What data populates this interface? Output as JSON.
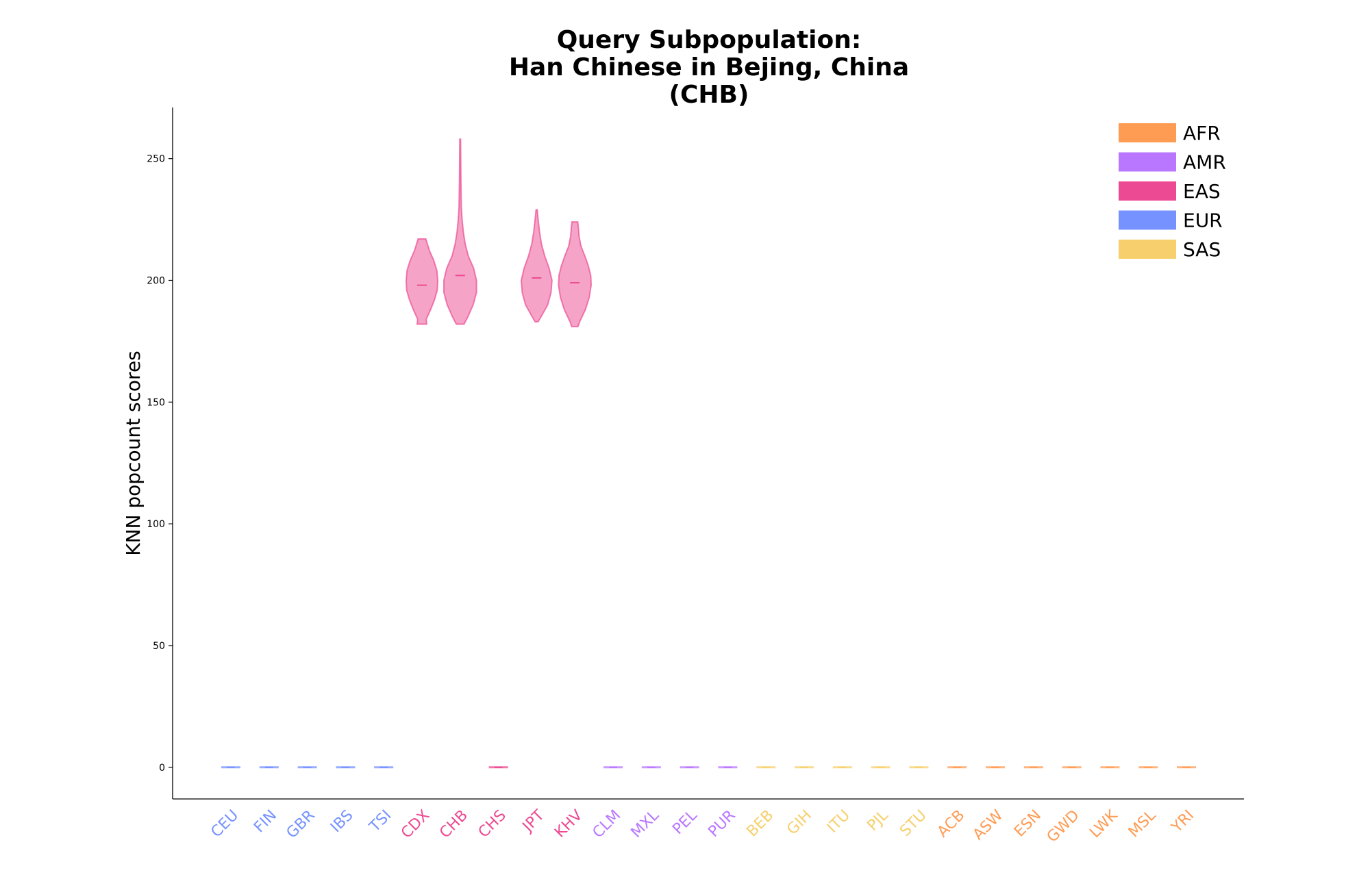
{
  "chart_data": {
    "type": "violin",
    "title": [
      "Query Subpopulation:",
      "Han Chinese in Bejing, China",
      "(CHB)"
    ],
    "xlabel": "",
    "ylabel": "KNN popcount scores",
    "ylim": [
      -13,
      271
    ],
    "yticks": [
      0,
      50,
      100,
      150,
      200,
      250
    ],
    "grid": false,
    "legend_position": "top-right",
    "colors": {
      "AFR": "#ff9c54",
      "AMR": "#b977ff",
      "EAS": "#ec4a92",
      "EUR": "#7592ff",
      "SAS": "#f7cf6c"
    },
    "legend": [
      "AFR",
      "AMR",
      "EAS",
      "EUR",
      "SAS"
    ],
    "categories": [
      {
        "label": "CEU",
        "group": "EUR",
        "median": 0,
        "min": 0,
        "max": 0
      },
      {
        "label": "FIN",
        "group": "EUR",
        "median": 0,
        "min": 0,
        "max": 0
      },
      {
        "label": "GBR",
        "group": "EUR",
        "median": 0,
        "min": 0,
        "max": 0
      },
      {
        "label": "IBS",
        "group": "EUR",
        "median": 0,
        "min": 0,
        "max": 0
      },
      {
        "label": "TSI",
        "group": "EUR",
        "median": 0,
        "min": 0,
        "max": 0
      },
      {
        "label": "CDX",
        "group": "EAS",
        "median": 198,
        "min": 182,
        "max": 217
      },
      {
        "label": "CHB",
        "group": "EAS",
        "median": 202,
        "min": 182,
        "max": 258
      },
      {
        "label": "CHS",
        "group": "EAS",
        "median": 0,
        "min": 0,
        "max": 0
      },
      {
        "label": "JPT",
        "group": "EAS",
        "median": 201,
        "min": 183,
        "max": 229
      },
      {
        "label": "KHV",
        "group": "EAS",
        "median": 199,
        "min": 181,
        "max": 224
      },
      {
        "label": "CLM",
        "group": "AMR",
        "median": 0,
        "min": 0,
        "max": 0
      },
      {
        "label": "MXL",
        "group": "AMR",
        "median": 0,
        "min": 0,
        "max": 0
      },
      {
        "label": "PEL",
        "group": "AMR",
        "median": 0,
        "min": 0,
        "max": 0
      },
      {
        "label": "PUR",
        "group": "AMR",
        "median": 0,
        "min": 0,
        "max": 0
      },
      {
        "label": "BEB",
        "group": "SAS",
        "median": 0,
        "min": 0,
        "max": 0
      },
      {
        "label": "GIH",
        "group": "SAS",
        "median": 0,
        "min": 0,
        "max": 0
      },
      {
        "label": "ITU",
        "group": "SAS",
        "median": 0,
        "min": 0,
        "max": 0
      },
      {
        "label": "PJL",
        "group": "SAS",
        "median": 0,
        "min": 0,
        "max": 0
      },
      {
        "label": "STU",
        "group": "SAS",
        "median": 0,
        "min": 0,
        "max": 0
      },
      {
        "label": "ACB",
        "group": "AFR",
        "median": 0,
        "min": 0,
        "max": 0
      },
      {
        "label": "ASW",
        "group": "AFR",
        "median": 0,
        "min": 0,
        "max": 0
      },
      {
        "label": "ESN",
        "group": "AFR",
        "median": 0,
        "min": 0,
        "max": 0
      },
      {
        "label": "GWD",
        "group": "AFR",
        "median": 0,
        "min": 0,
        "max": 0
      },
      {
        "label": "LWK",
        "group": "AFR",
        "median": 0,
        "min": 0,
        "max": 0
      },
      {
        "label": "MSL",
        "group": "AFR",
        "median": 0,
        "min": 0,
        "max": 0
      },
      {
        "label": "YRI",
        "group": "AFR",
        "median": 0,
        "min": 0,
        "max": 0
      }
    ],
    "density": {
      "CDX": [
        [
          182,
          0.25
        ],
        [
          184,
          0.22
        ],
        [
          188,
          0.45
        ],
        [
          192,
          0.65
        ],
        [
          196,
          0.8
        ],
        [
          200,
          0.82
        ],
        [
          204,
          0.78
        ],
        [
          208,
          0.62
        ],
        [
          212,
          0.4
        ],
        [
          215,
          0.28
        ],
        [
          217,
          0.2
        ]
      ],
      "CHB": [
        [
          182,
          0.2
        ],
        [
          185,
          0.4
        ],
        [
          190,
          0.68
        ],
        [
          195,
          0.85
        ],
        [
          200,
          0.85
        ],
        [
          205,
          0.7
        ],
        [
          210,
          0.42
        ],
        [
          215,
          0.26
        ],
        [
          220,
          0.16
        ],
        [
          225,
          0.1
        ],
        [
          230,
          0.06
        ],
        [
          240,
          0.04
        ],
        [
          250,
          0.03
        ],
        [
          258,
          0.02
        ]
      ],
      "JPT": [
        [
          183,
          0.08
        ],
        [
          186,
          0.3
        ],
        [
          190,
          0.58
        ],
        [
          195,
          0.75
        ],
        [
          200,
          0.8
        ],
        [
          205,
          0.65
        ],
        [
          210,
          0.42
        ],
        [
          215,
          0.25
        ],
        [
          220,
          0.15
        ],
        [
          225,
          0.08
        ],
        [
          229,
          0.03
        ]
      ],
      "KHV": [
        [
          181,
          0.16
        ],
        [
          183,
          0.25
        ],
        [
          188,
          0.55
        ],
        [
          193,
          0.75
        ],
        [
          198,
          0.85
        ],
        [
          202,
          0.83
        ],
        [
          206,
          0.7
        ],
        [
          210,
          0.52
        ],
        [
          214,
          0.32
        ],
        [
          218,
          0.22
        ],
        [
          222,
          0.18
        ],
        [
          224,
          0.15
        ]
      ]
    }
  }
}
